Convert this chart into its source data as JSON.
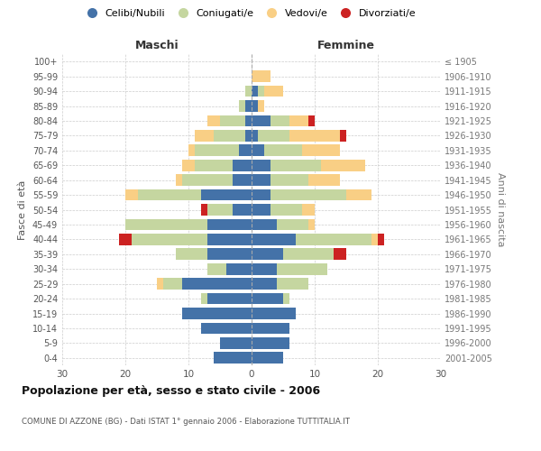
{
  "age_groups": [
    "0-4",
    "5-9",
    "10-14",
    "15-19",
    "20-24",
    "25-29",
    "30-34",
    "35-39",
    "40-44",
    "45-49",
    "50-54",
    "55-59",
    "60-64",
    "65-69",
    "70-74",
    "75-79",
    "80-84",
    "85-89",
    "90-94",
    "95-99",
    "100+"
  ],
  "birth_years": [
    "2001-2005",
    "1996-2000",
    "1991-1995",
    "1986-1990",
    "1981-1985",
    "1976-1980",
    "1971-1975",
    "1966-1970",
    "1961-1965",
    "1956-1960",
    "1951-1955",
    "1946-1950",
    "1941-1945",
    "1936-1940",
    "1931-1935",
    "1926-1930",
    "1921-1925",
    "1916-1920",
    "1911-1915",
    "1906-1910",
    "≤ 1905"
  ],
  "male_celibi": [
    6,
    5,
    8,
    11,
    7,
    11,
    4,
    7,
    7,
    7,
    3,
    8,
    3,
    3,
    2,
    1,
    1,
    1,
    0,
    0,
    0
  ],
  "male_coniugati": [
    0,
    0,
    0,
    0,
    1,
    3,
    3,
    5,
    12,
    13,
    4,
    10,
    8,
    6,
    7,
    5,
    4,
    1,
    1,
    0,
    0
  ],
  "male_vedovi": [
    0,
    0,
    0,
    0,
    0,
    1,
    0,
    0,
    0,
    0,
    0,
    2,
    1,
    2,
    1,
    3,
    2,
    0,
    0,
    0,
    0
  ],
  "male_divorziati": [
    0,
    0,
    0,
    0,
    0,
    0,
    0,
    0,
    2,
    0,
    1,
    0,
    0,
    0,
    0,
    0,
    0,
    0,
    0,
    0,
    0
  ],
  "female_celibi": [
    5,
    6,
    6,
    7,
    5,
    4,
    4,
    5,
    7,
    4,
    3,
    3,
    3,
    3,
    2,
    1,
    3,
    1,
    1,
    0,
    0
  ],
  "female_coniugati": [
    0,
    0,
    0,
    0,
    1,
    5,
    8,
    8,
    12,
    5,
    5,
    12,
    6,
    8,
    6,
    5,
    3,
    0,
    1,
    0,
    0
  ],
  "female_vedovi": [
    0,
    0,
    0,
    0,
    0,
    0,
    0,
    0,
    1,
    1,
    2,
    4,
    5,
    7,
    6,
    8,
    3,
    1,
    3,
    3,
    0
  ],
  "female_divorziati": [
    0,
    0,
    0,
    0,
    0,
    0,
    0,
    2,
    1,
    0,
    0,
    0,
    0,
    0,
    0,
    1,
    1,
    0,
    0,
    0,
    0
  ],
  "color_celibi": "#4472a8",
  "color_coniugati": "#c5d6a0",
  "color_vedovi": "#f9cf85",
  "color_divorziati": "#cc2222",
  "xlim": 30,
  "title": "Popolazione per età, sesso e stato civile - 2006",
  "subtitle": "COMUNE DI AZZONE (BG) - Dati ISTAT 1° gennaio 2006 - Elaborazione TUTTITALIA.IT",
  "ylabel_left": "Fasce di età",
  "ylabel_right": "Anni di nascita",
  "xlabel_left": "Maschi",
  "xlabel_right": "Femmine"
}
